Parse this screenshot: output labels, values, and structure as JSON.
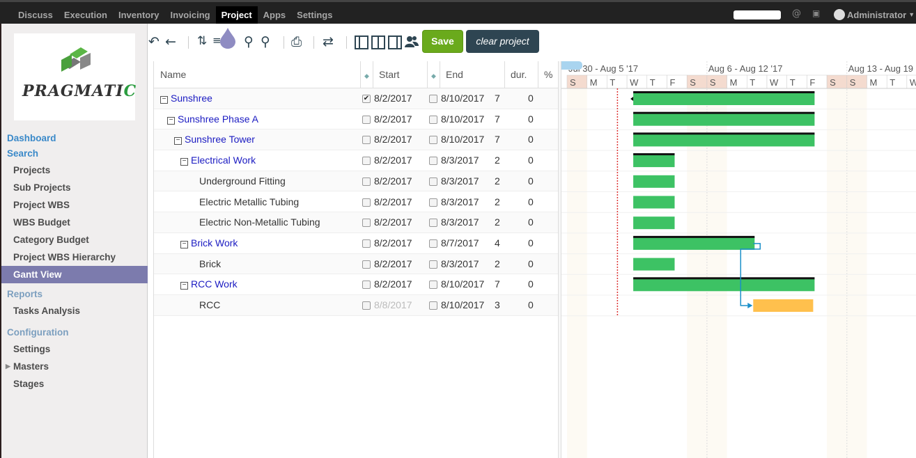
{
  "topbar": {
    "nav": [
      "Discuss",
      "Execution",
      "Inventory",
      "Invoicing",
      "Project",
      "Apps",
      "Settings"
    ],
    "active": "Project",
    "user": "Administrator"
  },
  "sidebar": {
    "logo_text": "PRAGMATI",
    "logo_last": "C",
    "sections": [
      {
        "heading": "Dashboard",
        "items": []
      },
      {
        "heading": "Search",
        "items": [
          "Projects",
          "Sub Projects",
          "Project WBS",
          "WBS Budget",
          "Category Budget",
          "Project WBS Hierarchy",
          "Gantt View"
        ]
      },
      {
        "heading": "Reports",
        "items": [
          "Tasks Analysis"
        ]
      },
      {
        "heading": "Configuration",
        "items": [
          "Settings",
          "Masters",
          "Stages"
        ]
      }
    ],
    "active_item": "Gantt View"
  },
  "toolbar": {
    "save_label": "Save",
    "clear_label": "clear project"
  },
  "grid": {
    "headers": {
      "name": "Name",
      "start": "Start",
      "end": "End",
      "dur": "dur.",
      "pct": "%"
    },
    "rows": [
      {
        "name": "Sunshree",
        "start": "8/2/2017",
        "end": "8/10/2017",
        "dur": "7",
        "pct": "0",
        "level": 0,
        "group": true,
        "checked": true
      },
      {
        "name": "Sunshree Phase A",
        "start": "8/2/2017",
        "end": "8/10/2017",
        "dur": "7",
        "pct": "0",
        "level": 1,
        "group": true
      },
      {
        "name": "Sunshree Tower",
        "start": "8/2/2017",
        "end": "8/10/2017",
        "dur": "7",
        "pct": "0",
        "level": 2,
        "group": true
      },
      {
        "name": "Electrical Work",
        "start": "8/2/2017",
        "end": "8/3/2017",
        "dur": "2",
        "pct": "0",
        "level": 3,
        "group": true
      },
      {
        "name": "Underground Fitting",
        "start": "8/2/2017",
        "end": "8/3/2017",
        "dur": "2",
        "pct": "0",
        "level": 4,
        "group": false
      },
      {
        "name": "Electric Metallic Tubing",
        "start": "8/2/2017",
        "end": "8/3/2017",
        "dur": "2",
        "pct": "0",
        "level": 4,
        "group": false
      },
      {
        "name": "Electric Non-Metallic Tubing",
        "start": "8/2/2017",
        "end": "8/3/2017",
        "dur": "2",
        "pct": "0",
        "level": 4,
        "group": false
      },
      {
        "name": "Brick Work",
        "start": "8/2/2017",
        "end": "8/7/2017",
        "dur": "4",
        "pct": "0",
        "level": 3,
        "group": true
      },
      {
        "name": "Brick",
        "start": "8/2/2017",
        "end": "8/3/2017",
        "dur": "2",
        "pct": "0",
        "level": 4,
        "group": false
      },
      {
        "name": "RCC Work",
        "start": "8/2/2017",
        "end": "8/10/2017",
        "dur": "7",
        "pct": "0",
        "level": 3,
        "group": true
      },
      {
        "name": "RCC",
        "start": "8/8/2017",
        "end": "8/10/2017",
        "dur": "3",
        "pct": "0",
        "level": 4,
        "group": false,
        "start_disabled": true
      }
    ]
  },
  "gantt": {
    "weeks": [
      "Jul 30 - Aug 5 '17",
      "Aug 6 - Aug 12 '17",
      "Aug 13 - Aug 19"
    ],
    "days": [
      "S",
      "M",
      "T",
      "W",
      "T",
      "F",
      "S",
      "S",
      "M",
      "T",
      "W",
      "T",
      "F",
      "S",
      "S",
      "M",
      "T",
      "W"
    ],
    "first_day": "2017-07-30",
    "today": "2017-08-02",
    "colors": {
      "summary": "#3dc264",
      "task": "#3dc264",
      "dependent": "#ffc04d",
      "weekend": "#f4dbcf",
      "today_line": "#d33",
      "link": "#1a8fc9"
    }
  }
}
